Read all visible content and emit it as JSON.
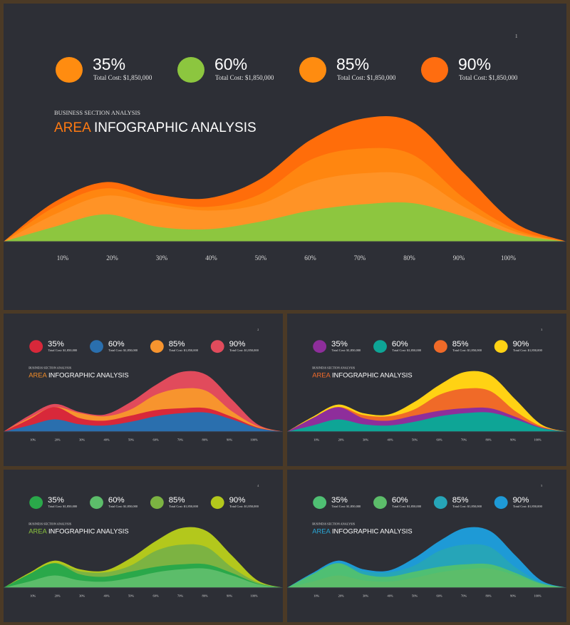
{
  "slides": [
    {
      "id": "slide-main",
      "page_number": "1",
      "subtitle": "BUSINESS SECTION ANALYSIS",
      "title_accent": "AREA",
      "title_rest": " INFOGRAPHIC ANALYSIS",
      "accent_color": "#ff7a12",
      "kpis": [
        {
          "value": "35%",
          "caption": "Total Cost: $1,850,000",
          "color": "#ff8c10"
        },
        {
          "value": "60%",
          "caption": "Total Cost: $1,850,000",
          "color": "#8cc63f"
        },
        {
          "value": "85%",
          "caption": "Total Cost: $1,850,000",
          "color": "#ff8c10"
        },
        {
          "value": "90%",
          "caption": "Total Cost: $1,850,000",
          "color": "#ff6d10"
        }
      ]
    },
    {
      "id": "slide-red",
      "page_number": "2",
      "subtitle": "BUSINESS SECTION ANALYSIS",
      "title_accent": "AREA",
      "title_rest": " INFOGRAPHIC ANALYSIS",
      "accent_color": "#f28c28",
      "kpis": [
        {
          "value": "35%",
          "caption": "Total Cost: $1,850,000",
          "color": "#d8283a"
        },
        {
          "value": "60%",
          "caption": "Total Cost: $1,850,000",
          "color": "#2a6fae"
        },
        {
          "value": "85%",
          "caption": "Total Cost: $1,850,000",
          "color": "#f7942e"
        },
        {
          "value": "90%",
          "caption": "Total Cost: $1,850,000",
          "color": "#e14b5c"
        }
      ]
    },
    {
      "id": "slide-purple",
      "page_number": "3",
      "subtitle": "BUSINESS SECTION ANALYSIS",
      "title_accent": "AREA",
      "title_rest": " INFOGRAPHIC ANALYSIS",
      "accent_color": "#f26b2a",
      "kpis": [
        {
          "value": "35%",
          "caption": "Total Cost: $1,850,000",
          "color": "#8e2e9b"
        },
        {
          "value": "60%",
          "caption": "Total Cost: $1,850,000",
          "color": "#0ea596"
        },
        {
          "value": "85%",
          "caption": "Total Cost: $1,850,000",
          "color": "#f06a28"
        },
        {
          "value": "90%",
          "caption": "Total Cost: $1,850,000",
          "color": "#ffd214"
        }
      ]
    },
    {
      "id": "slide-green",
      "page_number": "4",
      "subtitle": "BUSINESS SECTION ANALYSIS",
      "title_accent": "AREA",
      "title_rest": " INFOGRAPHIC ANALYSIS",
      "accent_color": "#8cc63f",
      "kpis": [
        {
          "value": "35%",
          "caption": "Total Cost: $1,850,000",
          "color": "#2aa84a"
        },
        {
          "value": "60%",
          "caption": "Total Cost: $1,850,000",
          "color": "#5cbd6a"
        },
        {
          "value": "85%",
          "caption": "Total Cost: $1,850,000",
          "color": "#7cb342"
        },
        {
          "value": "90%",
          "caption": "Total Cost: $1,850,000",
          "color": "#b3c81c"
        }
      ]
    },
    {
      "id": "slide-blue",
      "page_number": "5",
      "subtitle": "BUSINESS SECTION ANALYSIS",
      "title_accent": "AREA",
      "title_rest": " INFOGRAPHIC ANALYSIS",
      "accent_color": "#29a8d8",
      "kpis": [
        {
          "value": "35%",
          "caption": "Total Cost: $1,850,000",
          "color": "#4fbf73"
        },
        {
          "value": "60%",
          "caption": "Total Cost: $1,850,000",
          "color": "#5cbd6a"
        },
        {
          "value": "85%",
          "caption": "Total Cost: $1,850,000",
          "color": "#26a5b8"
        },
        {
          "value": "90%",
          "caption": "Total Cost: $1,850,000",
          "color": "#1e9ad6"
        }
      ]
    }
  ],
  "chart_data": [
    {
      "slide": "slide-main",
      "type": "area",
      "categories": [
        "10%",
        "20%",
        "30%",
        "40%",
        "50%",
        "60%",
        "70%",
        "80%",
        "90%",
        "100%"
      ],
      "ylim": [
        0,
        100
      ],
      "grid": false,
      "series": [
        {
          "color": "#ff6d0a",
          "values": [
            32,
            48,
            38,
            35,
            50,
            82,
            99,
            96,
            55,
            15
          ]
        },
        {
          "color": "#ff8610",
          "values": [
            28,
            43,
            33,
            28,
            38,
            66,
            75,
            70,
            35,
            10
          ]
        },
        {
          "color": "#ff9326",
          "values": [
            22,
            37,
            30,
            25,
            30,
            48,
            55,
            53,
            28,
            8
          ]
        },
        {
          "color": "#8dc63f",
          "values": [
            12,
            22,
            12,
            10,
            16,
            25,
            30,
            31,
            20,
            6
          ]
        }
      ]
    },
    {
      "slide": "slide-red",
      "type": "area",
      "categories": [
        "10%",
        "20%",
        "30%",
        "40%",
        "50%",
        "60%",
        "70%",
        "80%",
        "90%",
        "100%"
      ],
      "ylim": [
        0,
        100
      ],
      "grid": false,
      "series": [
        {
          "color": "#e14b5c",
          "values": [
            26,
            45,
            32,
            28,
            48,
            76,
            97,
            92,
            52,
            12
          ]
        },
        {
          "color": "#f7942e",
          "values": [
            22,
            40,
            30,
            25,
            36,
            60,
            70,
            66,
            33,
            9
          ]
        },
        {
          "color": "#d8283a",
          "values": [
            20,
            40,
            22,
            18,
            26,
            35,
            38,
            38,
            24,
            7
          ]
        },
        {
          "color": "#2a6fae",
          "values": [
            10,
            20,
            12,
            10,
            16,
            25,
            30,
            31,
            20,
            6
          ]
        }
      ]
    },
    {
      "slide": "slide-purple",
      "type": "area",
      "categories": [
        "10%",
        "20%",
        "30%",
        "40%",
        "50%",
        "60%",
        "70%",
        "80%",
        "90%",
        "100%"
      ],
      "ylim": [
        0,
        100
      ],
      "grid": false,
      "series": [
        {
          "color": "#ffd214",
          "values": [
            24,
            44,
            30,
            28,
            48,
            76,
            97,
            92,
            52,
            12
          ]
        },
        {
          "color": "#f06a28",
          "values": [
            20,
            40,
            27,
            25,
            36,
            60,
            70,
            66,
            33,
            9
          ]
        },
        {
          "color": "#8e2e9b",
          "values": [
            22,
            40,
            22,
            18,
            26,
            34,
            38,
            38,
            24,
            7
          ]
        },
        {
          "color": "#0ea596",
          "values": [
            10,
            20,
            12,
            10,
            16,
            25,
            30,
            31,
            20,
            6
          ]
        }
      ]
    },
    {
      "slide": "slide-green",
      "type": "area",
      "categories": [
        "10%",
        "20%",
        "30%",
        "40%",
        "50%",
        "60%",
        "70%",
        "80%",
        "90%",
        "100%"
      ],
      "ylim": [
        0,
        100
      ],
      "grid": false,
      "series": [
        {
          "color": "#b3c81c",
          "values": [
            24,
            44,
            30,
            28,
            48,
            76,
            97,
            92,
            52,
            12
          ]
        },
        {
          "color": "#7cb342",
          "values": [
            20,
            40,
            27,
            25,
            36,
            60,
            70,
            66,
            33,
            9
          ]
        },
        {
          "color": "#2aa84a",
          "values": [
            22,
            40,
            22,
            18,
            26,
            34,
            38,
            38,
            24,
            7
          ]
        },
        {
          "color": "#5cbd6a",
          "values": [
            10,
            20,
            12,
            10,
            16,
            25,
            30,
            31,
            20,
            6
          ]
        }
      ]
    },
    {
      "slide": "slide-blue",
      "type": "area",
      "categories": [
        "10%",
        "20%",
        "30%",
        "40%",
        "50%",
        "60%",
        "70%",
        "80%",
        "90%",
        "100%"
      ],
      "ylim": [
        0,
        100
      ],
      "grid": false,
      "series": [
        {
          "color": "#1e9ad6",
          "values": [
            24,
            44,
            30,
            28,
            48,
            76,
            97,
            92,
            52,
            12
          ]
        },
        {
          "color": "#26a5b8",
          "values": [
            20,
            40,
            27,
            25,
            36,
            60,
            70,
            66,
            33,
            9
          ]
        },
        {
          "color": "#4fbf73",
          "values": [
            22,
            40,
            22,
            18,
            26,
            34,
            38,
            38,
            24,
            7
          ]
        },
        {
          "color": "#5cbd6a",
          "values": [
            10,
            20,
            12,
            10,
            16,
            25,
            30,
            31,
            20,
            6
          ]
        }
      ]
    }
  ]
}
